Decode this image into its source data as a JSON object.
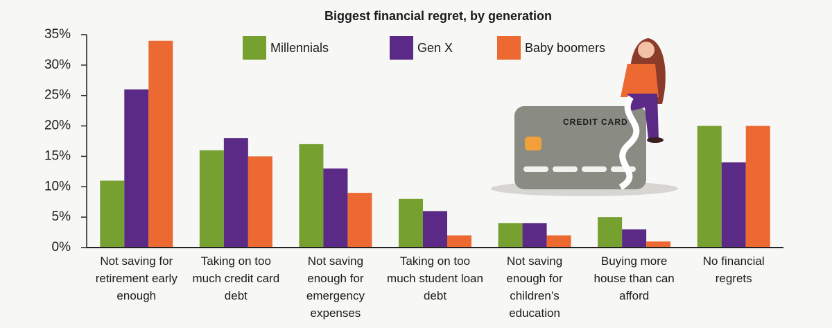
{
  "chart_data": {
    "type": "bar",
    "title": "Biggest financial regret, by generation",
    "categories": [
      "Not saving for retirement early enough",
      "Taking on too much credit card debt",
      "Not saving enough for emergency expenses",
      "Taking on too much student loan debt",
      "Not saving enough for children’s education",
      "Buying more house than can afford",
      "No financial regrets"
    ],
    "series": [
      {
        "name": "Millennials",
        "color": "#76a02f",
        "values": [
          11,
          16,
          17,
          8,
          4,
          5,
          20
        ]
      },
      {
        "name": "Gen X",
        "color": "#5b2a86",
        "values": [
          26,
          18,
          13,
          6,
          4,
          3,
          14
        ]
      },
      {
        "name": "Baby boomers",
        "color": "#ec6a32",
        "values": [
          34,
          15,
          9,
          2,
          2,
          1,
          20
        ]
      }
    ],
    "ylim": [
      0,
      35
    ],
    "yticks": [
      {
        "value": 0,
        "label": "0%"
      },
      {
        "value": 5,
        "label": "5%"
      },
      {
        "value": 10,
        "label": "10%"
      },
      {
        "value": 15,
        "label": "15%"
      },
      {
        "value": 20,
        "label": "20%"
      },
      {
        "value": 25,
        "label": "25%"
      },
      {
        "value": 30,
        "label": "30%"
      },
      {
        "value": 35,
        "label": "35%"
      }
    ],
    "legend": "top center",
    "illustration_text": "CREDIT CARD"
  }
}
